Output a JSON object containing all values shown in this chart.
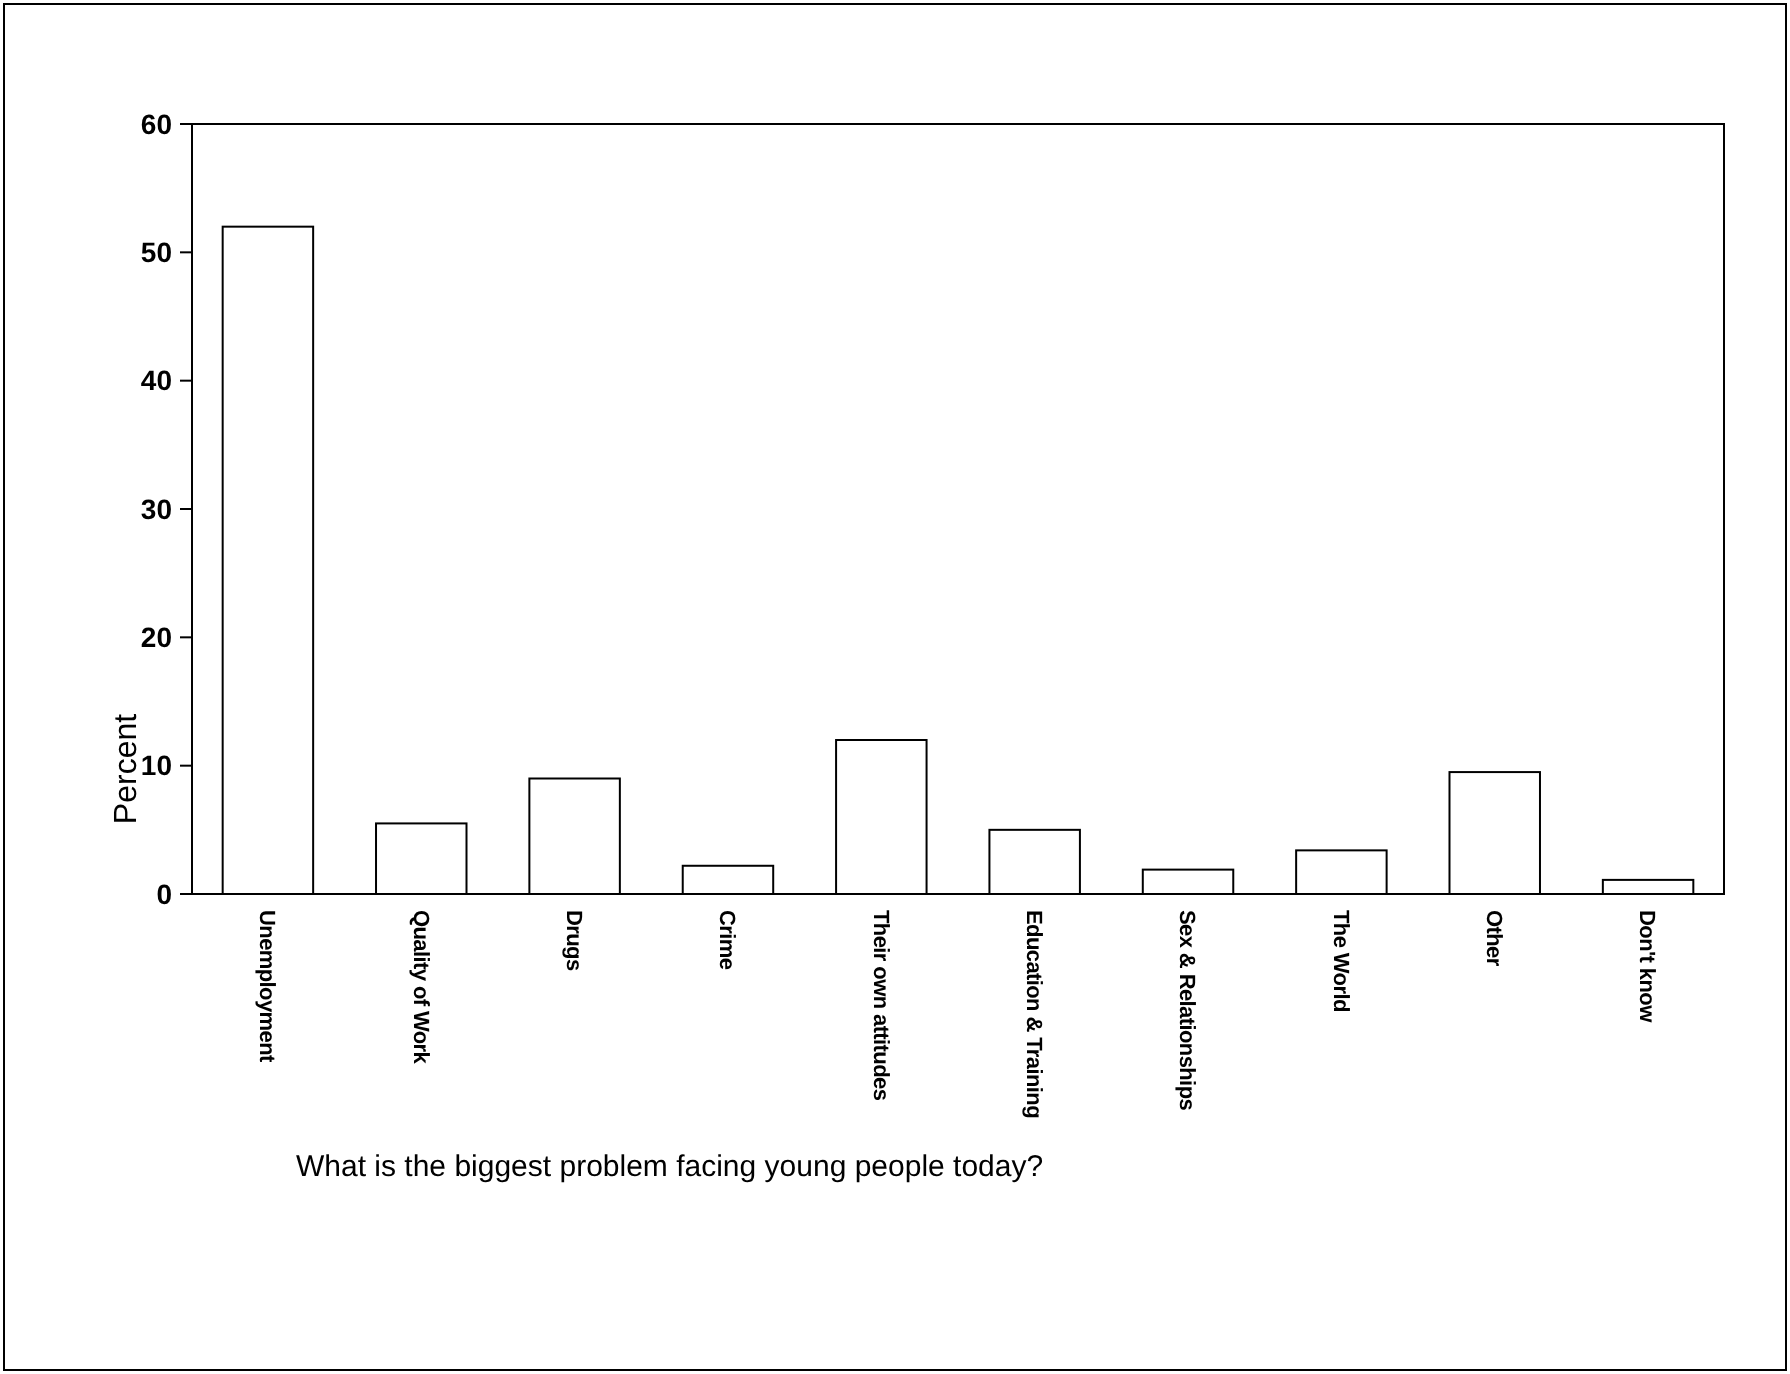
{
  "chart_data": {
    "type": "bar",
    "ylabel": "Percent",
    "categories": [
      "Unemployment",
      "Quality of Work",
      "Drugs",
      "Crime",
      "Their own attitudes",
      "Education & Training",
      "Sex & Relationships",
      "The World",
      "Other",
      "Don't know"
    ],
    "values": [
      52,
      5.5,
      9,
      2.2,
      12,
      5,
      1.9,
      3.4,
      9.5,
      1.1
    ],
    "color": "#ffffff",
    "ylim": [
      0,
      60
    ],
    "yticks": [
      0,
      10,
      20,
      30,
      40,
      50,
      60
    ],
    "grid": false,
    "annotations": [
      "What is the biggest problem facing young people today?"
    ]
  }
}
